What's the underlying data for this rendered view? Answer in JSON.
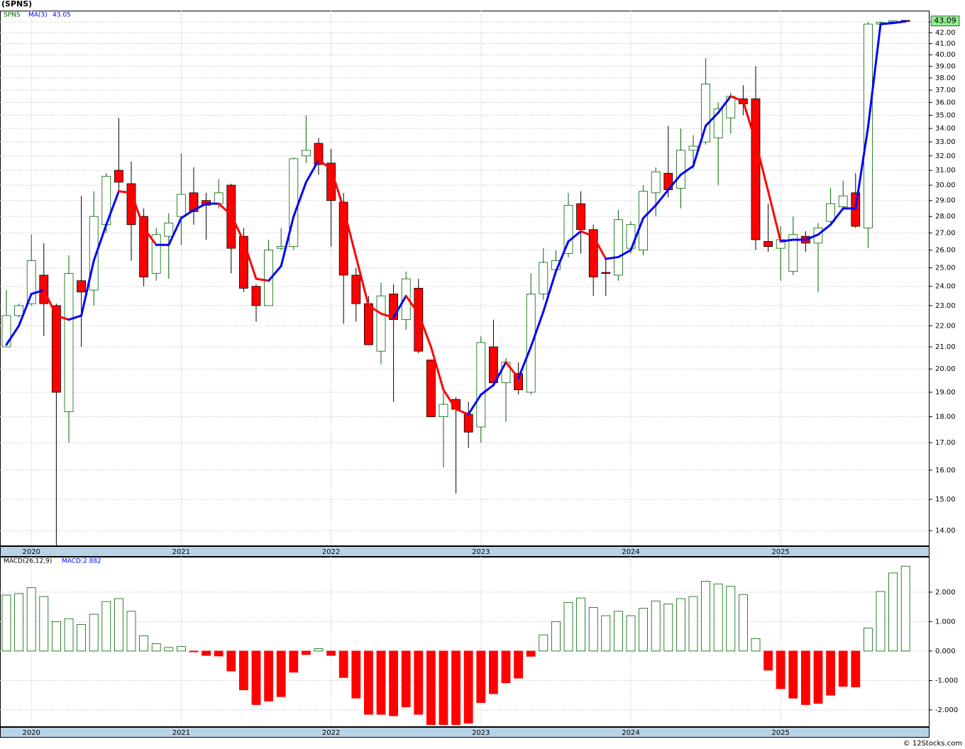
{
  "title": "(SPNS)",
  "watermark": "© 12Stocks.com",
  "chart_data": [
    {
      "type": "candlestick",
      "log_scale": true,
      "grid": true,
      "legend": {
        "symbol": "SPNS",
        "ma_name": "MA(3)",
        "ma_value": 43.05
      },
      "up_color": "#006400",
      "down_color": "#ff0000",
      "categories": [
        null,
        null,
        "2020",
        null,
        null,
        null,
        null,
        null,
        null,
        null,
        null,
        null,
        null,
        null,
        "2021",
        null,
        null,
        null,
        null,
        null,
        null,
        null,
        null,
        null,
        null,
        null,
        "2022",
        null,
        null,
        null,
        null,
        null,
        null,
        null,
        null,
        null,
        null,
        null,
        "2023",
        null,
        null,
        null,
        null,
        null,
        null,
        null,
        null,
        null,
        null,
        null,
        "2024",
        null,
        null,
        null,
        null,
        null,
        null,
        null,
        null,
        null,
        null,
        null,
        "2025",
        null,
        null,
        null,
        null,
        null,
        null,
        null,
        null,
        null,
        null
      ],
      "ylim": [
        13.53,
        44.09
      ],
      "yticks": [
        {
          "value": 14,
          "label": "14.00"
        },
        {
          "value": 15,
          "label": "15.00"
        },
        {
          "value": 16,
          "label": "16.00"
        },
        {
          "value": 17,
          "label": "17.00"
        },
        {
          "value": 18,
          "label": "18.00"
        },
        {
          "value": 19,
          "label": "19.00"
        },
        {
          "value": 20,
          "label": "20.00"
        },
        {
          "value": 21,
          "label": "21.00"
        },
        {
          "value": 22,
          "label": "22.00"
        },
        {
          "value": 23,
          "label": "23.00"
        },
        {
          "value": 24,
          "label": "24.00"
        },
        {
          "value": 25,
          "label": "25.00"
        },
        {
          "value": 26,
          "label": "26.00"
        },
        {
          "value": 27,
          "label": "27.00"
        },
        {
          "value": 28,
          "label": "28.00"
        },
        {
          "value": 29,
          "label": "29.00"
        },
        {
          "value": 30,
          "label": "30.00"
        },
        {
          "value": 31,
          "label": "31.00"
        },
        {
          "value": 32,
          "label": "32.00"
        },
        {
          "value": 33,
          "label": "33.00"
        },
        {
          "value": 34,
          "label": "34.00"
        },
        {
          "value": 35,
          "label": "35.00"
        },
        {
          "value": 36,
          "label": "36.00"
        },
        {
          "value": 37,
          "label": "37.00"
        },
        {
          "value": 38,
          "label": "38.00"
        },
        {
          "value": 39,
          "label": "39.00"
        },
        {
          "value": 40,
          "label": "40.00"
        },
        {
          "value": 41,
          "label": "41.00"
        },
        {
          "value": 42,
          "label": "42.00"
        },
        {
          "value": 43,
          "label": "43.00"
        }
      ],
      "series": [
        {
          "name": "SPNS",
          "color": "#006400",
          "open": [
            21.0,
            22.5,
            23.1,
            24.6,
            23.0,
            18.2,
            24.3,
            23.8,
            27.5,
            31.0,
            30.1,
            28.0,
            24.7,
            26.8,
            28.0,
            29.5,
            29.0,
            28.8,
            30.0,
            26.8,
            24.0,
            23.0,
            26.1,
            26.2,
            32.0,
            32.9,
            31.5,
            28.9,
            24.6,
            23.1,
            20.8,
            23.6,
            22.3,
            23.9,
            20.4,
            18.0,
            18.7,
            18.1,
            17.6,
            21.0,
            19.4,
            19.8,
            19.0,
            23.6,
            24.9,
            25.8,
            28.8,
            27.2,
            24.75,
            24.6,
            26.1,
            26.0,
            29.5,
            30.8,
            29.8,
            32.4,
            33.0,
            33.3,
            34.8,
            36.3,
            36.3,
            26.5,
            26.1,
            24.8,
            26.8,
            26.4,
            27.7,
            28.6,
            29.5,
            27.3,
            42.8,
            43.0,
            43.15
          ],
          "high": [
            23.8,
            23.1,
            26.9,
            26.4,
            23.1,
            25.7,
            29.3,
            29.6,
            30.8,
            34.8,
            31.6,
            28.5,
            27.3,
            28.2,
            32.2,
            31.2,
            29.5,
            30.4,
            30.1,
            27.3,
            24.1,
            26.6,
            27.3,
            31.9,
            35.0,
            33.3,
            32.5,
            29.5,
            25.0,
            23.5,
            24.2,
            24.1,
            24.8,
            24.4,
            20.4,
            19.0,
            18.8,
            18.6,
            21.5,
            22.3,
            20.5,
            20.3,
            24.7,
            26.1,
            26.0,
            29.5,
            29.6,
            27.5,
            25.5,
            28.4,
            27.7,
            30.0,
            31.2,
            34.2,
            34.0,
            33.5,
            39.7,
            36.0,
            36.8,
            37.4,
            39.0,
            28.8,
            27.4,
            28.0,
            27.1,
            27.6,
            29.8,
            30.3,
            30.8,
            43.0,
            43.05,
            43.15,
            43.2
          ],
          "low": [
            21.0,
            22.4,
            23.0,
            21.5,
            13.5,
            17.0,
            21.0,
            23.0,
            27.0,
            29.5,
            25.4,
            24.0,
            24.3,
            24.4,
            26.3,
            27.5,
            26.6,
            28.5,
            24.7,
            23.7,
            22.2,
            23.0,
            26.0,
            26.0,
            31.5,
            30.7,
            26.2,
            22.1,
            22.2,
            21.1,
            20.2,
            18.6,
            21.8,
            20.7,
            18.0,
            16.1,
            15.2,
            16.8,
            17.0,
            19.3,
            17.8,
            18.9,
            18.9,
            23.3,
            24.6,
            25.6,
            25.8,
            23.5,
            23.5,
            24.3,
            25.8,
            25.7,
            28.0,
            29.2,
            28.5,
            31.1,
            32.8,
            30.0,
            33.6,
            35.0,
            26.0,
            25.9,
            24.3,
            24.6,
            25.9,
            23.7,
            27.5,
            28.4,
            27.3,
            26.1,
            42.7,
            42.95,
            43.0
          ],
          "close": [
            22.5,
            23.0,
            25.4,
            23.1,
            19.0,
            24.7,
            23.7,
            28.0,
            30.6,
            30.2,
            27.5,
            24.5,
            26.9,
            27.6,
            29.4,
            28.3,
            28.7,
            29.5,
            26.1,
            23.9,
            23.0,
            26.0,
            26.2,
            31.8,
            32.4,
            31.4,
            29.0,
            24.6,
            23.1,
            21.1,
            23.5,
            22.3,
            24.4,
            20.8,
            18.0,
            18.5,
            18.3,
            17.4,
            21.2,
            19.4,
            20.3,
            19.1,
            23.6,
            25.3,
            25.4,
            28.7,
            27.2,
            24.5,
            24.7,
            27.8,
            27.5,
            29.6,
            30.9,
            29.7,
            32.4,
            32.7,
            37.5,
            35.5,
            36.5,
            35.9,
            26.6,
            26.2,
            26.6,
            26.9,
            26.4,
            27.3,
            28.8,
            29.3,
            27.4,
            42.8,
            42.95,
            43.1,
            43.09
          ]
        },
        {
          "name": "MA(3)",
          "color": "#0000ff",
          "down_color": "#ff0000",
          "values": [
            21.1,
            22.0,
            23.6,
            23.8,
            22.5,
            22.3,
            22.5,
            25.4,
            27.5,
            29.6,
            29.5,
            27.3,
            26.3,
            26.3,
            27.9,
            28.4,
            28.8,
            28.8,
            28.1,
            26.5,
            24.4,
            24.3,
            25.1,
            28.0,
            30.2,
            31.7,
            31.1,
            28.5,
            25.6,
            23.0,
            22.6,
            22.4,
            23.5,
            22.6,
            21.0,
            19.1,
            18.3,
            18.1,
            18.9,
            19.3,
            20.3,
            19.6,
            21.0,
            22.7,
            24.8,
            26.5,
            27.1,
            26.8,
            25.5,
            25.6,
            26.0,
            27.9,
            28.7,
            29.7,
            30.7,
            31.3,
            34.2,
            35.2,
            36.5,
            36.1,
            33.0,
            29.6,
            26.5,
            26.6,
            26.6,
            26.9,
            27.5,
            28.5,
            28.5,
            34.1,
            42.8,
            42.9,
            43.05
          ]
        }
      ]
    },
    {
      "type": "histogram_bar",
      "grid": true,
      "legend": {
        "name": "MACD(26,12,9)",
        "value_label": "MACD:2.882"
      },
      "up_color": "#006400",
      "down_color": "#ff0000",
      "categories": [
        null,
        null,
        "2020",
        null,
        null,
        null,
        null,
        null,
        null,
        null,
        null,
        null,
        null,
        null,
        "2021",
        null,
        null,
        null,
        null,
        null,
        null,
        null,
        null,
        null,
        null,
        null,
        "2022",
        null,
        null,
        null,
        null,
        null,
        null,
        null,
        null,
        null,
        null,
        null,
        "2023",
        null,
        null,
        null,
        null,
        null,
        null,
        null,
        null,
        null,
        null,
        null,
        "2024",
        null,
        null,
        null,
        null,
        null,
        null,
        null,
        null,
        null,
        null,
        null,
        "2025",
        null,
        null,
        null,
        null,
        null,
        null,
        null,
        null,
        null,
        null
      ],
      "ylim": [
        -2.58,
        3.2
      ],
      "yticks": [
        {
          "value": -2,
          "label": "-2.000"
        },
        {
          "value": -1,
          "label": "-1.000"
        },
        {
          "value": 0,
          "label": "0.000"
        },
        {
          "value": 1,
          "label": "1.000"
        },
        {
          "value": 2,
          "label": "2.000"
        }
      ],
      "values": [
        1.9,
        1.95,
        2.15,
        1.85,
        1.0,
        1.1,
        0.9,
        1.25,
        1.68,
        1.78,
        1.35,
        0.52,
        0.25,
        0.12,
        0.15,
        -0.03,
        -0.15,
        -0.17,
        -0.68,
        -1.32,
        -1.82,
        -1.7,
        -1.55,
        -0.72,
        -0.12,
        0.08,
        -0.15,
        -0.9,
        -1.6,
        -2.15,
        -2.15,
        -2.2,
        -1.9,
        -2.15,
        -2.5,
        -2.5,
        -2.5,
        -2.45,
        -1.75,
        -1.45,
        -1.08,
        -0.92,
        -0.18,
        0.55,
        1.0,
        1.65,
        1.8,
        1.48,
        1.2,
        1.35,
        1.2,
        1.45,
        1.7,
        1.6,
        1.78,
        1.85,
        2.37,
        2.28,
        2.2,
        1.92,
        0.42,
        -0.65,
        -1.28,
        -1.6,
        -1.82,
        -1.78,
        -1.5,
        -1.2,
        -1.22,
        0.78,
        2.02,
        2.65,
        2.882
      ]
    }
  ]
}
